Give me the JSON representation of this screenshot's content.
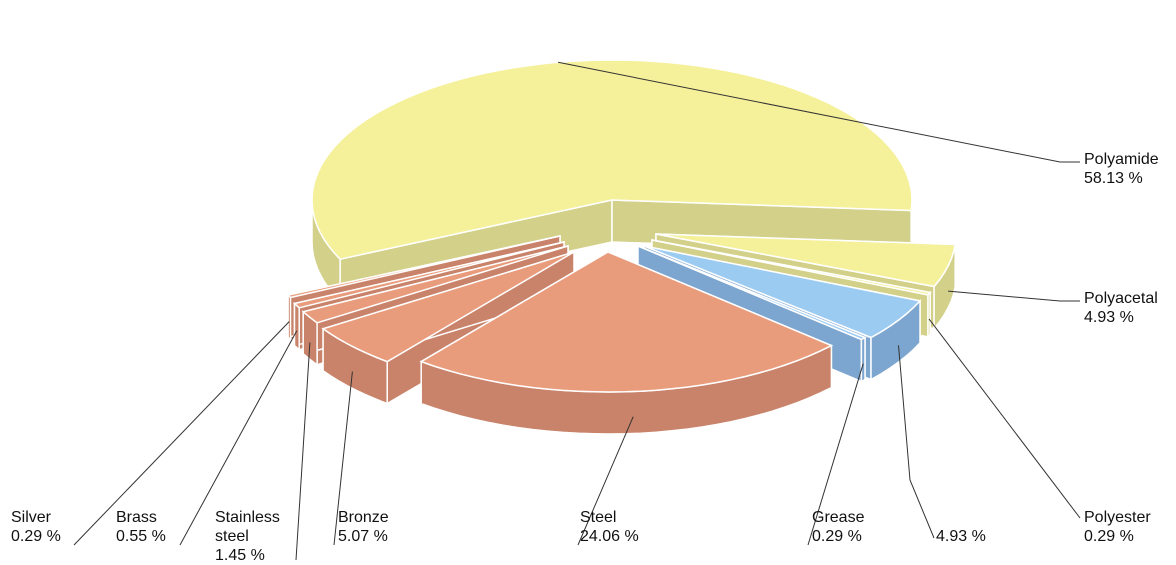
{
  "chart_data": {
    "type": "pie",
    "style": "3d-exploded",
    "slices": [
      {
        "label": "Polyamide",
        "value_text": "58.13 %",
        "value": 58.13,
        "color": "#f5f09a",
        "dark": "#d3d089"
      },
      {
        "label": "Polyacetal",
        "value_text": "4.93 %",
        "value": 4.93,
        "color": "#f5f09a",
        "dark": "#d3d089"
      },
      {
        "label": "Polyester",
        "value_text": "0.29 %",
        "value": 0.29,
        "color": "#f5f09a",
        "dark": "#d3d089"
      },
      {
        "label": "",
        "value_text": "4.93 %",
        "value": 4.93,
        "color": "#9ccbf2",
        "dark": "#7ca5cf"
      },
      {
        "label": "Grease",
        "value_text": "0.29 %",
        "value": 0.29,
        "color": "#9ccbf2",
        "dark": "#7ca5cf"
      },
      {
        "label": "Steel",
        "value_text": "24.06 %",
        "value": 24.06,
        "color": "#e99c7c",
        "dark": "#c9836a"
      },
      {
        "label": "Bronze",
        "value_text": "5.07 %",
        "value": 5.07,
        "color": "#e99c7c",
        "dark": "#c9836a"
      },
      {
        "label": "Stainless steel",
        "value_text": "1.45 %",
        "value": 1.45,
        "color": "#e99c7c",
        "dark": "#c9836a"
      },
      {
        "label": "Brass",
        "value_text": "0.55 %",
        "value": 0.55,
        "color": "#e99c7c",
        "dark": "#c9836a"
      },
      {
        "label": "Silver",
        "value_text": "0.29 %",
        "value": 0.29,
        "color": "#e99c7c",
        "dark": "#c9836a"
      }
    ]
  },
  "labels": {
    "polyamide": {
      "name": "Polyamide",
      "pct": "58.13 %"
    },
    "polyacetal": {
      "name": "Polyacetal",
      "pct": "4.93 %"
    },
    "polyester": {
      "name": "Polyester",
      "pct": "0.29 %"
    },
    "blue": {
      "name": "",
      "pct": "4.93 %"
    },
    "grease": {
      "name": "Grease",
      "pct": "0.29 %"
    },
    "steel": {
      "name": "Steel",
      "pct": "24.06 %"
    },
    "bronze": {
      "name": "Bronze",
      "pct": "5.07 %"
    },
    "stainless": {
      "name1": "Stainless",
      "name2": "steel",
      "pct": "1.45 %"
    },
    "brass": {
      "name": "Brass",
      "pct": "0.55 %"
    },
    "silver": {
      "name": "Silver",
      "pct": "0.29 %"
    }
  }
}
